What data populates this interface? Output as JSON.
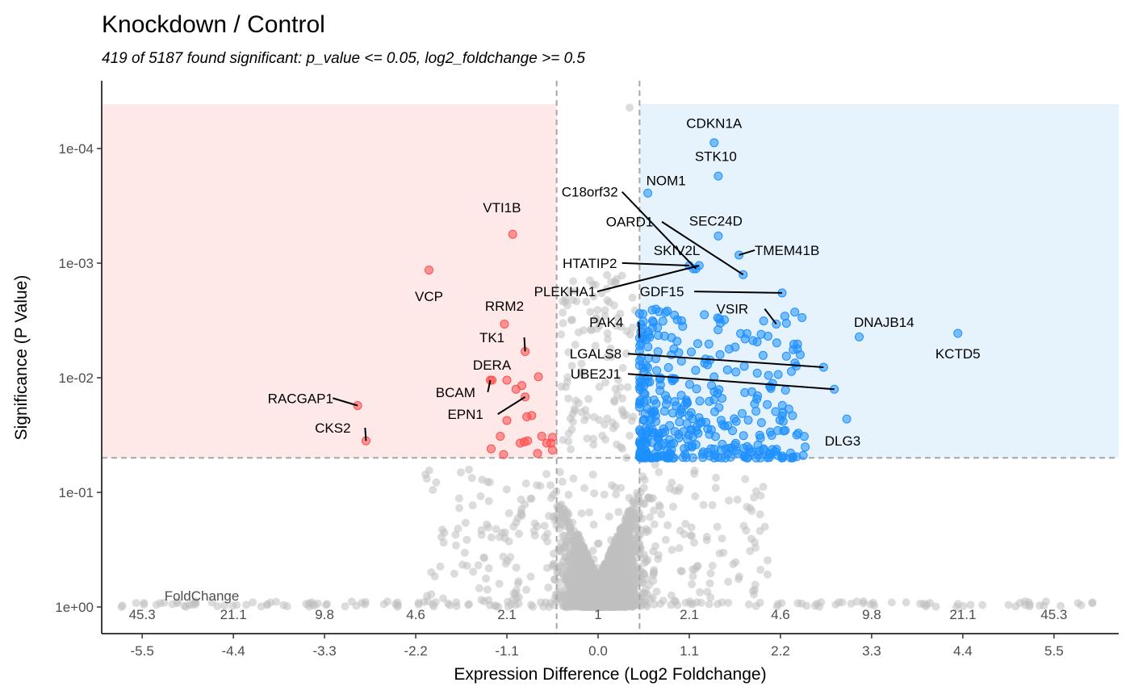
{
  "chart_data": {
    "type": "scatter",
    "title": "Knockdown / Control",
    "subtitle": "419 of 5187 found significant: p_value <= 0.05, log2_foldchange >= 0.5",
    "xlabel": "Expression Difference (Log2 Foldchange)",
    "ylabel": "Significance (P Value)",
    "xlim": [
      -6.1,
      6.6
    ],
    "y_scale": "log10-reversed",
    "y_label_positions_neglog10p": [
      0,
      1,
      2,
      3,
      4
    ],
    "ylim_neglog10p": [
      -0.2,
      4.6
    ],
    "x_ticks": [
      -5.5,
      -4.4,
      -3.3,
      -2.2,
      -1.1,
      0.0,
      1.1,
      2.2,
      3.3,
      4.4,
      5.5
    ],
    "x_tick_labels": [
      "-5.5",
      "-4.4",
      "-3.3",
      "-2.2",
      "-1.1",
      "0.0",
      "1.1",
      "2.2",
      "3.3",
      "4.4",
      "5.5"
    ],
    "y_ticks": [
      0,
      1,
      2,
      3,
      4
    ],
    "y_tick_labels": [
      "1e+00",
      "1e-01",
      "1e-02",
      "1e-03",
      "1e-04"
    ],
    "foldchange_title": "FoldChange",
    "foldchange_x": [
      -5.5,
      -4.4,
      -3.3,
      -2.2,
      -1.1,
      0.0,
      1.1,
      2.2,
      3.3,
      4.4,
      5.5
    ],
    "foldchange_labels": [
      "45.3",
      "21.1",
      "9.8",
      "4.6",
      "2.1",
      "1",
      "2.1",
      "4.6",
      "9.8",
      "21.1",
      "45.3"
    ],
    "thresholds": {
      "p_value": 0.05,
      "log2_foldchange": 0.5
    },
    "colors": {
      "down": "#ff4d4d",
      "up": "#1e90ff",
      "ns": "#bfbfbf",
      "down_region": "#ffe8e8",
      "up_region": "#e6f3fd",
      "threshold_line": "#a6a6a6"
    },
    "down": [
      {
        "gene": "VTI1B",
        "x": -1.03,
        "p": 0.00056,
        "lx": -1.16,
        "lp": 0.00036
      },
      {
        "gene": "VCP",
        "x": -2.04,
        "p": 0.00115,
        "lx": -2.04,
        "lp": 0.00215
      },
      {
        "gene": "RRM2",
        "x": -1.13,
        "p": 0.0034,
        "lx": -1.13,
        "lp": 0.0026
      },
      {
        "gene": "TK1",
        "x": -0.88,
        "p": 0.0059,
        "lx": -1.28,
        "lp": 0.0049
      },
      {
        "gene": "DERA",
        "x": -1.1,
        "p": 0.0105,
        "lx": -1.28,
        "lp": 0.0085
      },
      {
        "gene": "BCAM",
        "x": -1.3,
        "p": 0.0105,
        "lx": -1.72,
        "lp": 0.0147
      },
      {
        "gene": "RACGAP1",
        "x": -2.9,
        "p": 0.0175,
        "lx": -3.59,
        "lp": 0.0166
      },
      {
        "gene": "EPN1",
        "x": -0.88,
        "p": 0.0147,
        "lx": -1.6,
        "lp": 0.0229
      },
      {
        "gene": "CKS2",
        "x": -2.8,
        "p": 0.0355,
        "lx": -3.2,
        "lp": 0.0301
      },
      {
        "x": -1.28,
        "p": 0.0105
      },
      {
        "x": -0.99,
        "p": 0.0126
      },
      {
        "x": -0.92,
        "p": 0.0117
      },
      {
        "x": -0.72,
        "p": 0.0098
      },
      {
        "x": -0.86,
        "p": 0.0219
      },
      {
        "x": -0.8,
        "p": 0.0214
      },
      {
        "x": -1.1,
        "p": 0.0236
      },
      {
        "x": -1.18,
        "p": 0.0324
      },
      {
        "x": -0.94,
        "p": 0.0372
      },
      {
        "x": -0.89,
        "p": 0.0363
      },
      {
        "x": -0.85,
        "p": 0.0355
      },
      {
        "x": -0.62,
        "p": 0.0372
      },
      {
        "x": -0.55,
        "p": 0.0331
      },
      {
        "x": -0.55,
        "p": 0.0427
      },
      {
        "x": -1.29,
        "p": 0.0417
      },
      {
        "x": -1.14,
        "p": 0.0468
      },
      {
        "x": -0.73,
        "p": 0.0457
      },
      {
        "x": -0.57,
        "p": 0.0372
      },
      {
        "x": -0.68,
        "p": 0.0324
      }
    ],
    "up": [
      {
        "gene": "CDKN1A",
        "x": 1.4,
        "p": 8.9e-05,
        "lx": 1.4,
        "lp": 6.6e-05
      },
      {
        "gene": "STK10",
        "x": 1.45,
        "p": 0.000174,
        "lx": 1.42,
        "lp": 0.000129
      },
      {
        "gene": "NOM1",
        "x": 0.6,
        "p": 0.000245,
        "lx": 0.82,
        "lp": 0.000209
      },
      {
        "gene": "C18orf32",
        "x": 1.18,
        "p": 0.00112,
        "lx": -0.1,
        "lp": 0.000263
      },
      {
        "gene": "OARD1",
        "x": 1.75,
        "p": 0.00126,
        "lx": 0.38,
        "lp": 0.00048
      },
      {
        "gene": "SEC24D",
        "x": 1.45,
        "p": 0.00058,
        "lx": 1.42,
        "lp": 0.00047
      },
      {
        "gene": "TMEM41B",
        "x": 1.7,
        "p": 0.00085,
        "lx": 2.28,
        "lp": 0.00085
      },
      {
        "gene": "SKIV2L",
        "x": 1.15,
        "p": 0.00112,
        "lx": 0.95,
        "lp": 0.00085
      },
      {
        "gene": "HTATIP2",
        "x": 1.1,
        "p": 0.00105,
        "lx": -0.1,
        "lp": 0.0011
      },
      {
        "gene": "PLEKHA1",
        "x": 1.22,
        "p": 0.00105,
        "lx": -0.4,
        "lp": 0.00195
      },
      {
        "gene": "GDF15",
        "x": 2.22,
        "p": 0.00182,
        "lx": 0.77,
        "lp": 0.00195
      },
      {
        "gene": "VSIR",
        "x": 2.15,
        "p": 0.0034,
        "lx": 1.62,
        "lp": 0.00276
      },
      {
        "gene": "PAK4",
        "x": 0.5,
        "p": 0.0045,
        "lx": 0.1,
        "lp": 0.0036
      },
      {
        "gene": "DNAJB14",
        "x": 3.15,
        "p": 0.0044,
        "lx": 3.45,
        "lp": 0.0036
      },
      {
        "gene": "KCTD5",
        "x": 4.34,
        "p": 0.0041,
        "lx": 4.34,
        "lp": 0.0068
      },
      {
        "gene": "LGALS8",
        "x": 2.72,
        "p": 0.0081,
        "lx": -0.03,
        "lp": 0.0068
      },
      {
        "gene": "UBE2J1",
        "x": 2.85,
        "p": 0.0126,
        "lx": -0.03,
        "lp": 0.0102
      },
      {
        "gene": "DLG3",
        "x": 3.0,
        "p": 0.0229,
        "lx": 2.95,
        "lp": 0.0389
      }
    ],
    "ns_top": [
      {
        "x": 0.38,
        "p": 4.4e-05
      }
    ]
  }
}
